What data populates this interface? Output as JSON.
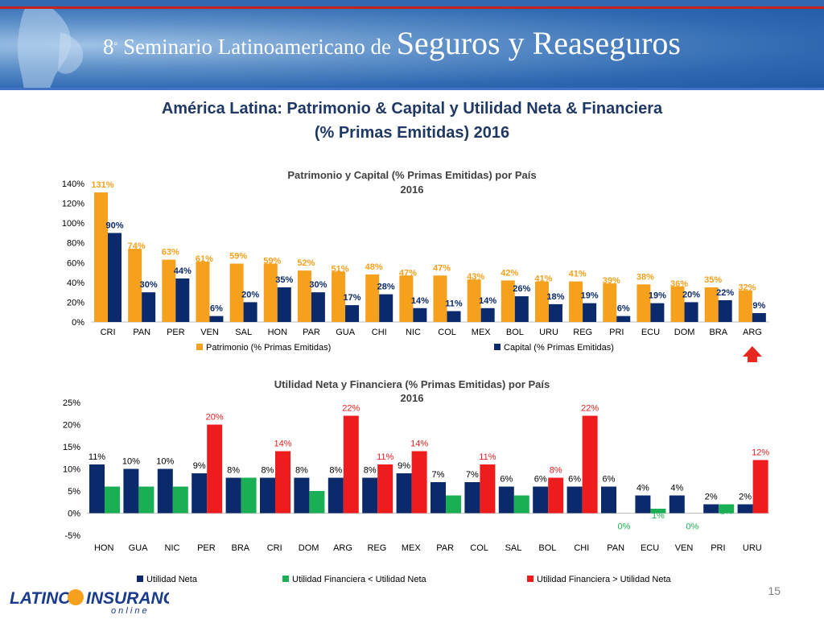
{
  "header": {
    "ordinal_number": "8",
    "ordinal_suffix": "°",
    "title_small": " Seminario Latinoamericano de ",
    "title_big": "Seguros y Reaseguros"
  },
  "main_title": {
    "line1": "América Latina: Patrimonio & Capital y Utilidad Neta & Financiera",
    "line2": "(% Primas Emitidas) 2016"
  },
  "colors": {
    "orange": "#f5a11d",
    "navy": "#0b2a6b",
    "green": "#1aaf54",
    "red": "#ee1c1c",
    "arrow": "#e8281e"
  },
  "chart_data": [
    {
      "type": "bar",
      "title_line1": "Patrimonio y Capital (% Primas Emitidas) por País",
      "title_line2": "2016",
      "categories": [
        "CRI",
        "PAN",
        "PER",
        "VEN",
        "SAL",
        "HON",
        "PAR",
        "GUA",
        "CHI",
        "NIC",
        "COL",
        "MEX",
        "BOL",
        "URU",
        "REG",
        "PRI",
        "ECU",
        "DOM",
        "BRA",
        "ARG"
      ],
      "series": [
        {
          "name": "Patrimonio (% Primas Emitidas)",
          "values": [
            131,
            74,
            63,
            61,
            59,
            59,
            52,
            51,
            48,
            47,
            47,
            43,
            42,
            41,
            41,
            39,
            38,
            36,
            35,
            32
          ]
        },
        {
          "name": "Capital (% Primas Emitidas)",
          "values": [
            90,
            30,
            44,
            6,
            20,
            35,
            30,
            17,
            28,
            14,
            11,
            14,
            26,
            18,
            19,
            6,
            19,
            20,
            22,
            9
          ]
        }
      ],
      "ylim": [
        0,
        140
      ],
      "yticks": [
        0,
        20,
        40,
        60,
        80,
        100,
        120,
        140
      ],
      "ytick_labels": [
        "0%",
        "20%",
        "40%",
        "60%",
        "80%",
        "100%",
        "120%",
        "140%"
      ],
      "legend": "bottom",
      "highlight_category": "ARG"
    },
    {
      "type": "bar",
      "title_line1": "Utilidad Neta y Financiera (% Primas Emitidas) por País",
      "title_line2": "2016",
      "categories": [
        "HON",
        "GUA",
        "NIC",
        "PER",
        "BRA",
        "CRI",
        "DOM",
        "ARG",
        "REG",
        "MEX",
        "PAR",
        "COL",
        "SAL",
        "BOL",
        "CHI",
        "PAN",
        "ECU",
        "VEN",
        "PRI",
        "URU"
      ],
      "series": [
        {
          "name": "Utilidad Neta",
          "values": [
            11,
            10,
            10,
            9,
            8,
            8,
            8,
            8,
            8,
            9,
            7,
            7,
            6,
            6,
            6,
            6,
            4,
            4,
            2,
            2
          ]
        },
        {
          "name": "Utilidad Financiera",
          "values": [
            6,
            6,
            6,
            20,
            8,
            14,
            5,
            22,
            11,
            14,
            4,
            11,
            4,
            8,
            22,
            0,
            1,
            0,
            2,
            12
          ]
        }
      ],
      "financial_below_net": [
        true,
        true,
        true,
        false,
        true,
        false,
        true,
        false,
        false,
        false,
        true,
        false,
        true,
        false,
        false,
        true,
        true,
        true,
        true,
        false
      ],
      "legend_labels": [
        "Utilidad Neta",
        "Utilidad Financiera < Utilidad Neta",
        "Utilidad Financiera > Utilidad Neta"
      ],
      "ylim": [
        -5,
        25
      ],
      "yticks": [
        -5,
        0,
        5,
        10,
        15,
        20,
        25
      ],
      "ytick_labels": [
        "-5%",
        "0%",
        "5%",
        "10%",
        "15%",
        "20%",
        "25%"
      ],
      "legend": "bottom",
      "highlight_category": "ARG"
    }
  ],
  "footer": {
    "logo_word1": "LATINO",
    "logo_word2": "INSURANCE",
    "logo_sub": "o n   l i n e",
    "page_number": "15"
  }
}
